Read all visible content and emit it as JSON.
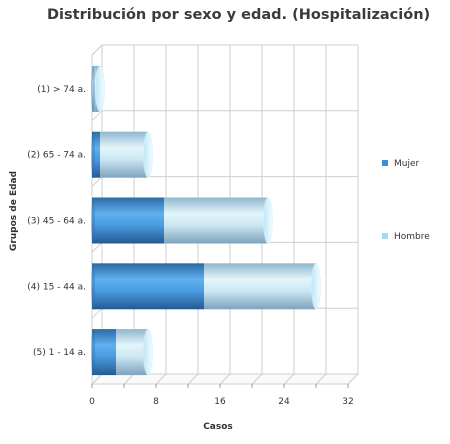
{
  "chart_data": {
    "type": "bar",
    "orientation": "horizontal",
    "stacked": true,
    "title": "Distribución por sexo y edad. (Hospitalización)",
    "xlabel": "Casos",
    "ylabel": "Grupos de Edad",
    "categories": [
      "(1) > 74 a.",
      "(2) 65 - 74 a.",
      "(3) 45 - 64 a.",
      "(4) 15 - 44 a.",
      "(5) 1 - 14 a."
    ],
    "series": [
      {
        "name": "Mujer",
        "values": [
          0,
          1,
          9,
          14,
          3
        ],
        "color": "#3d8fd6"
      },
      {
        "name": "Hombre",
        "values": [
          1,
          6,
          13,
          14,
          4
        ],
        "color": "#a8d8ef"
      }
    ],
    "xlim": [
      0,
      32
    ],
    "xticks": [
      "0",
      "8",
      "16",
      "24",
      "32"
    ],
    "grid": true,
    "legend_position": "right"
  }
}
